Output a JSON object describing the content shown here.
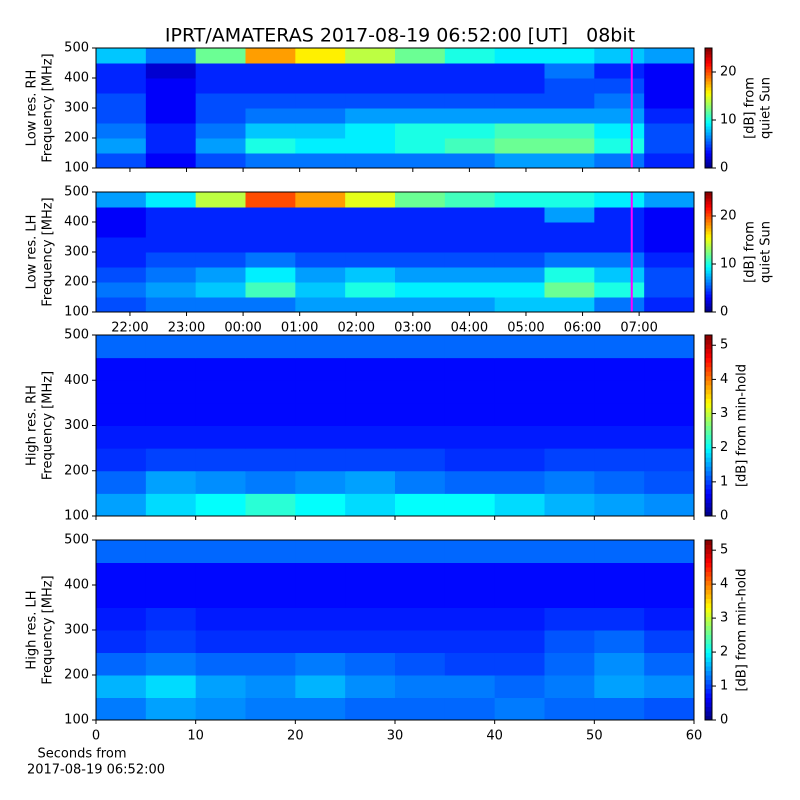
{
  "chart_data": [
    {
      "type": "heatmap",
      "title": "IPRT/AMATERAS 2017-08-19 06:52:00 [UT]   08bit",
      "ylabel": [
        "Low res. RH",
        "Frequency [MHz]"
      ],
      "colorbar_label": [
        "[dB] from",
        "quiet Sun"
      ],
      "colormap": "jet",
      "clim": [
        0,
        25
      ],
      "cticks": [
        0,
        10,
        20
      ],
      "xlim": [
        21.4,
        31.97
      ],
      "xticks": [
        {
          "value": 22,
          "label": "22:00"
        },
        {
          "value": 23,
          "label": "23:00"
        },
        {
          "value": 24,
          "label": "00:00"
        },
        {
          "value": 25,
          "label": "01:00"
        },
        {
          "value": 26,
          "label": "02:00"
        },
        {
          "value": 27,
          "label": "03:00"
        },
        {
          "value": 28,
          "label": "04:00"
        },
        {
          "value": 29,
          "label": "05:00"
        },
        {
          "value": 30,
          "label": "06:00"
        },
        {
          "value": 31,
          "label": "07:00"
        }
      ],
      "show_xtick_labels": false,
      "ylim": [
        100,
        500
      ],
      "yticks": [
        100,
        200,
        300,
        400,
        500
      ],
      "marker_x": 30.87,
      "marker_color": "#ff00ff",
      "z": [
        [
          5,
          3,
          5,
          6,
          6,
          6,
          6,
          6,
          7,
          7,
          6,
          4
        ],
        [
          7,
          4,
          7,
          10,
          9,
          9,
          10,
          11,
          12,
          12,
          10,
          5
        ],
        [
          6,
          4,
          6,
          8,
          8,
          9,
          10,
          10,
          11,
          11,
          9,
          5
        ],
        [
          5,
          3,
          5,
          6,
          6,
          7,
          7,
          7,
          7,
          7,
          7,
          4
        ],
        [
          5,
          3,
          5,
          5,
          5,
          5,
          5,
          5,
          5,
          5,
          6,
          3
        ],
        [
          4,
          3,
          4,
          4,
          4,
          4,
          4,
          4,
          4,
          5,
          5,
          3
        ],
        [
          4,
          2,
          4,
          4,
          4,
          4,
          4,
          4,
          4,
          6,
          4,
          3
        ],
        [
          8,
          6,
          12,
          18,
          16,
          14,
          12,
          10,
          9,
          9,
          8,
          7
        ]
      ]
    },
    {
      "type": "heatmap",
      "ylabel": [
        "Low res. LH",
        "Frequency [MHz]"
      ],
      "colorbar_label": [
        "[dB] from",
        "quiet Sun"
      ],
      "colormap": "jet",
      "clim": [
        0,
        25
      ],
      "cticks": [
        0,
        10,
        20
      ],
      "xlim": [
        21.4,
        31.97
      ],
      "xticks": [
        {
          "value": 22,
          "label": "22:00"
        },
        {
          "value": 23,
          "label": "23:00"
        },
        {
          "value": 24,
          "label": "00:00"
        },
        {
          "value": 25,
          "label": "01:00"
        },
        {
          "value": 26,
          "label": "02:00"
        },
        {
          "value": 27,
          "label": "03:00"
        },
        {
          "value": 28,
          "label": "04:00"
        },
        {
          "value": 29,
          "label": "05:00"
        },
        {
          "value": 30,
          "label": "06:00"
        },
        {
          "value": 31,
          "label": "07:00"
        }
      ],
      "show_xtick_labels": true,
      "ylim": [
        100,
        500
      ],
      "yticks": [
        100,
        200,
        300,
        400,
        500
      ],
      "marker_x": 30.87,
      "marker_color": "#ff00ff",
      "z": [
        [
          5,
          6,
          6,
          6,
          7,
          7,
          7,
          7,
          8,
          8,
          6,
          4
        ],
        [
          6,
          7,
          8,
          11,
          8,
          10,
          9,
          9,
          9,
          12,
          10,
          5
        ],
        [
          5,
          6,
          7,
          9,
          7,
          8,
          7,
          7,
          7,
          10,
          8,
          5
        ],
        [
          4,
          5,
          5,
          6,
          5,
          5,
          5,
          5,
          5,
          6,
          6,
          4
        ],
        [
          4,
          4,
          4,
          4,
          4,
          4,
          4,
          4,
          4,
          4,
          4,
          3
        ],
        [
          3,
          4,
          4,
          4,
          4,
          4,
          4,
          4,
          4,
          4,
          4,
          3
        ],
        [
          3,
          4,
          4,
          4,
          4,
          4,
          4,
          4,
          4,
          7,
          4,
          3
        ],
        [
          7,
          9,
          14,
          20,
          18,
          15,
          12,
          11,
          10,
          10,
          9,
          7
        ]
      ]
    },
    {
      "type": "heatmap",
      "ylabel": [
        "High res. RH",
        "Frequency [MHz]"
      ],
      "colorbar_label": [
        "[dB] from min-hold"
      ],
      "colormap": "jet",
      "clim": [
        0,
        5.3
      ],
      "cticks": [
        0,
        1,
        2,
        3,
        4,
        5
      ],
      "xlim": [
        0,
        60
      ],
      "xticks": [
        0,
        10,
        20,
        30,
        40,
        50,
        60
      ],
      "show_xtick_labels": false,
      "ylim": [
        100,
        500
      ],
      "yticks": [
        100,
        200,
        300,
        400,
        500
      ],
      "z": [
        [
          1.5,
          1.8,
          2.0,
          2.2,
          2.0,
          1.8,
          2.0,
          2.0,
          1.8,
          1.6,
          1.5,
          1.4
        ],
        [
          1.2,
          1.5,
          1.4,
          1.3,
          1.4,
          1.5,
          1.3,
          1.2,
          1.2,
          1.3,
          1.2,
          1.1
        ],
        [
          0.9,
          1.0,
          1.0,
          1.0,
          1.0,
          1.0,
          1.0,
          0.9,
          0.9,
          1.0,
          1.0,
          1.0
        ],
        [
          0.8,
          0.8,
          0.8,
          0.8,
          0.8,
          0.8,
          0.8,
          0.8,
          0.8,
          0.8,
          0.8,
          0.8
        ],
        [
          0.7,
          0.7,
          0.7,
          0.7,
          0.7,
          0.7,
          0.7,
          0.7,
          0.7,
          0.7,
          0.7,
          0.7
        ],
        [
          0.7,
          0.7,
          0.7,
          0.7,
          0.7,
          0.7,
          0.7,
          0.7,
          0.7,
          0.7,
          0.7,
          0.7
        ],
        [
          0.7,
          0.7,
          0.7,
          0.7,
          0.7,
          0.7,
          0.7,
          0.7,
          0.7,
          0.7,
          0.7,
          0.7
        ],
        [
          1.2,
          1.2,
          1.2,
          1.2,
          1.2,
          1.2,
          1.2,
          1.2,
          1.2,
          1.2,
          1.2,
          1.2
        ]
      ]
    },
    {
      "type": "heatmap",
      "ylabel": [
        "High res. LH",
        "Frequency [MHz]"
      ],
      "colorbar_label": [
        "[dB] from min-hold"
      ],
      "colormap": "jet",
      "clim": [
        0,
        5.3
      ],
      "cticks": [
        0,
        1,
        2,
        3,
        4,
        5
      ],
      "xlim": [
        0,
        60
      ],
      "xticks": [
        0,
        10,
        20,
        30,
        40,
        50,
        60
      ],
      "show_xtick_labels": true,
      "xlabel": [
        "Seconds from",
        "2017-08-19 06:52:00"
      ],
      "ylim": [
        100,
        500
      ],
      "yticks": [
        100,
        200,
        300,
        400,
        500
      ],
      "z": [
        [
          1.3,
          1.5,
          1.4,
          1.3,
          1.3,
          1.2,
          1.2,
          1.2,
          1.3,
          1.2,
          1.2,
          1.1
        ],
        [
          1.6,
          1.8,
          1.5,
          1.4,
          1.6,
          1.4,
          1.3,
          1.3,
          1.2,
          1.3,
          1.5,
          1.4
        ],
        [
          1.2,
          1.3,
          1.2,
          1.2,
          1.3,
          1.2,
          1.1,
          1.0,
          1.0,
          1.2,
          1.4,
          1.2
        ],
        [
          0.9,
          1.0,
          0.9,
          0.9,
          0.9,
          0.9,
          0.9,
          0.9,
          0.9,
          1.1,
          1.2,
          1.0
        ],
        [
          0.8,
          0.9,
          0.8,
          0.8,
          0.8,
          0.8,
          0.8,
          0.8,
          0.8,
          0.9,
          0.9,
          0.8
        ],
        [
          0.7,
          0.7,
          0.7,
          0.7,
          0.7,
          0.7,
          0.7,
          0.7,
          0.7,
          0.7,
          0.7,
          0.7
        ],
        [
          0.7,
          0.7,
          0.7,
          0.7,
          0.7,
          0.7,
          0.7,
          0.7,
          0.7,
          0.7,
          0.7,
          0.7
        ],
        [
          1.2,
          1.2,
          1.2,
          1.2,
          1.2,
          1.2,
          1.2,
          1.2,
          1.2,
          1.2,
          1.2,
          1.2
        ]
      ]
    }
  ]
}
